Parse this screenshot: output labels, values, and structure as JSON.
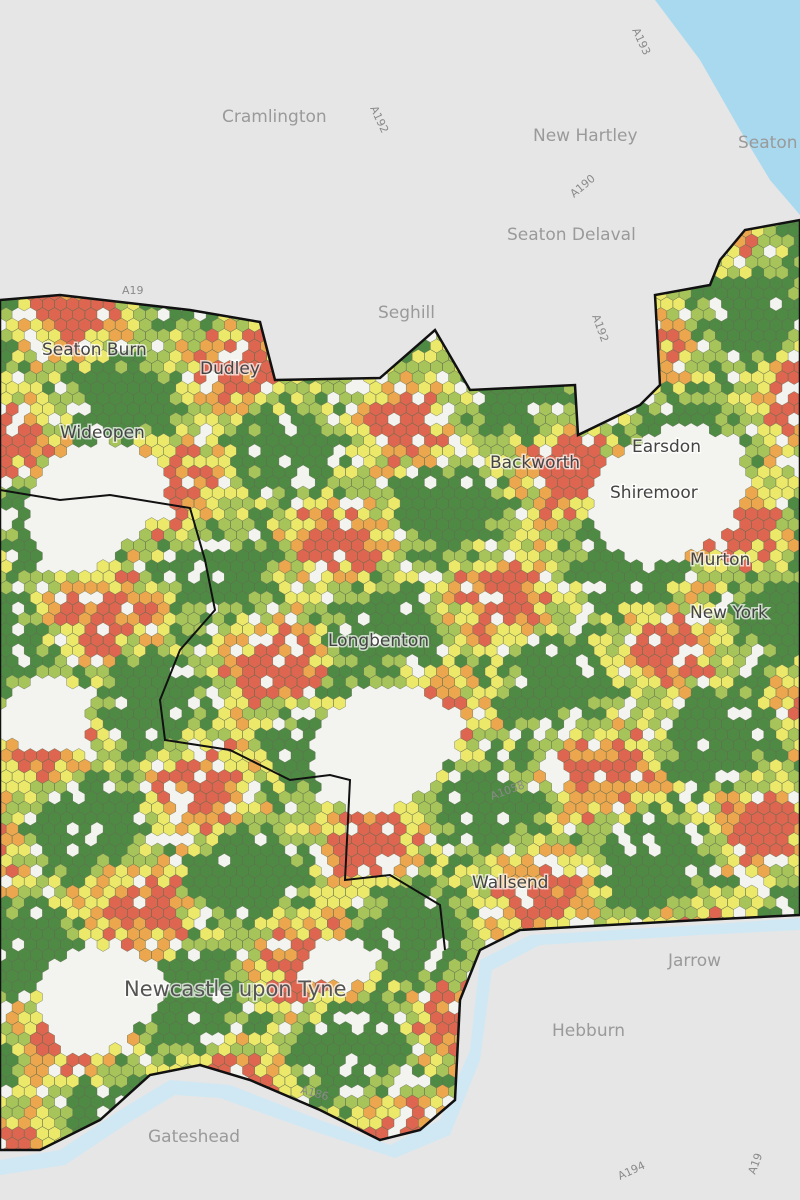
{
  "places": [
    "Cramlington",
    "New Hartley",
    "Seaton",
    "Seaton Delaval",
    "Seghill",
    "Seaton Burn",
    "Dudley",
    "Wideopen",
    "Backworth",
    "Earsdon",
    "Shiremoor",
    "Murton",
    "New York",
    "Longbenton",
    "Wallsend",
    "Jarrow",
    "Hebburn",
    "Newcastle upon Tyne",
    "Gateshead"
  ],
  "roads": [
    "A19",
    "A192",
    "A193",
    "A190",
    "A192",
    "A1058",
    "A186",
    "A194",
    "A19"
  ]
}
